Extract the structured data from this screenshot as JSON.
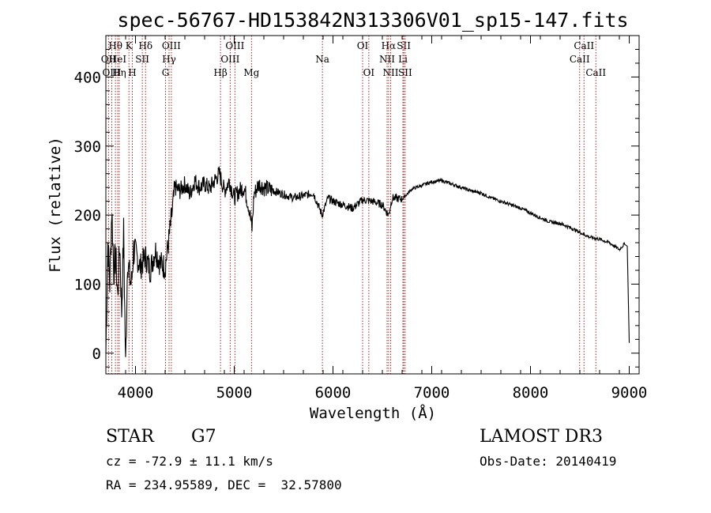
{
  "chart_data": {
    "type": "line",
    "title": "spec-56767-HD153842N313306V01_sp15-147.fits",
    "xlabel": "Wavelength (Å)",
    "ylabel": "Flux (relative)",
    "xlim": [
      3700,
      9100
    ],
    "ylim": [
      -30,
      460
    ],
    "x_ticks": [
      4000,
      5000,
      6000,
      7000,
      8000,
      9000
    ],
    "y_ticks": [
      0,
      100,
      200,
      300,
      400
    ],
    "grid": false,
    "series": [
      {
        "name": "flux",
        "color": "#000000",
        "x": [
          3700,
          3720,
          3740,
          3760,
          3780,
          3800,
          3820,
          3840,
          3860,
          3880,
          3900,
          3920,
          3940,
          3960,
          3980,
          4000,
          4050,
          4100,
          4150,
          4200,
          4250,
          4300,
          4330,
          4360,
          4400,
          4450,
          4500,
          4550,
          4600,
          4650,
          4700,
          4750,
          4800,
          4850,
          4900,
          4950,
          5000,
          5050,
          5100,
          5150,
          5180,
          5200,
          5250,
          5300,
          5400,
          5500,
          5600,
          5700,
          5800,
          5890,
          5950,
          6000,
          6100,
          6200,
          6300,
          6400,
          6500,
          6563,
          6600,
          6700,
          6800,
          6900,
          7000,
          7100,
          7200,
          7300,
          7400,
          7500,
          7600,
          7700,
          7800,
          7900,
          8000,
          8100,
          8200,
          8300,
          8400,
          8500,
          8600,
          8700,
          8800,
          8900,
          8950,
          8980,
          9000
        ],
        "y": [
          0,
          160,
          100,
          210,
          120,
          140,
          80,
          160,
          60,
          175,
          -20,
          140,
          110,
          100,
          150,
          145,
          125,
          140,
          120,
          150,
          130,
          125,
          155,
          190,
          240,
          235,
          245,
          230,
          250,
          240,
          245,
          238,
          250,
          260,
          235,
          250,
          225,
          235,
          240,
          210,
          180,
          230,
          245,
          240,
          235,
          230,
          225,
          228,
          232,
          200,
          225,
          220,
          215,
          210,
          222,
          220,
          215,
          200,
          225,
          223,
          238,
          243,
          248,
          250,
          245,
          240,
          235,
          232,
          225,
          220,
          215,
          210,
          203,
          196,
          190,
          188,
          182,
          175,
          168,
          165,
          160,
          150,
          158,
          155,
          15
        ]
      }
    ],
    "line_markers": [
      {
        "label": "Hθ",
        "x": 3797,
        "row": 1
      },
      {
        "label": "OII",
        "x": 3727,
        "row": 2
      },
      {
        "label": "OIII",
        "x": 3760,
        "row": 3
      },
      {
        "label": "K",
        "x": 3934,
        "row": 1
      },
      {
        "label": "HeI",
        "x": 3820,
        "row": 2
      },
      {
        "label": "Hη",
        "x": 3835,
        "row": 3
      },
      {
        "label": "H",
        "x": 3968,
        "row": 3
      },
      {
        "label": "SII",
        "x": 4069,
        "row": 2
      },
      {
        "label": "Hδ",
        "x": 4102,
        "row": 1
      },
      {
        "label": "OIII",
        "x": 4363,
        "row": 1
      },
      {
        "label": "Hγ",
        "x": 4340,
        "row": 2
      },
      {
        "label": "G",
        "x": 4304,
        "row": 3
      },
      {
        "label": "Hβ",
        "x": 4861,
        "row": 3
      },
      {
        "label": "OIII",
        "x": 5007,
        "row": 1
      },
      {
        "label": "OIII",
        "x": 4959,
        "row": 2
      },
      {
        "label": "Mg",
        "x": 5175,
        "row": 3
      },
      {
        "label": "Na",
        "x": 5893,
        "row": 2
      },
      {
        "label": "OI",
        "x": 6300,
        "row": 1
      },
      {
        "label": "OI",
        "x": 6363,
        "row": 3
      },
      {
        "label": "Hα",
        "x": 6563,
        "row": 1
      },
      {
        "label": "NII",
        "x": 6548,
        "row": 2
      },
      {
        "label": "NII",
        "x": 6584,
        "row": 3
      },
      {
        "label": "SII",
        "x": 6717,
        "row": 1
      },
      {
        "label": "Li",
        "x": 6708,
        "row": 2
      },
      {
        "label": "SII",
        "x": 6731,
        "row": 3
      },
      {
        "label": "CaII",
        "x": 8542,
        "row": 1
      },
      {
        "label": "CaII",
        "x": 8498,
        "row": 2
      },
      {
        "label": "CaII",
        "x": 8662,
        "row": 3
      }
    ]
  },
  "footer": {
    "object_class": "STAR",
    "subclass": "G7",
    "redshift": "cz = -72.9 ± 11.1 km/s",
    "coordinates": "RA = 234.95589, DEC =  32.57800",
    "survey": "LAMOST DR3",
    "obs_date": "Obs-Date: 20140419"
  }
}
